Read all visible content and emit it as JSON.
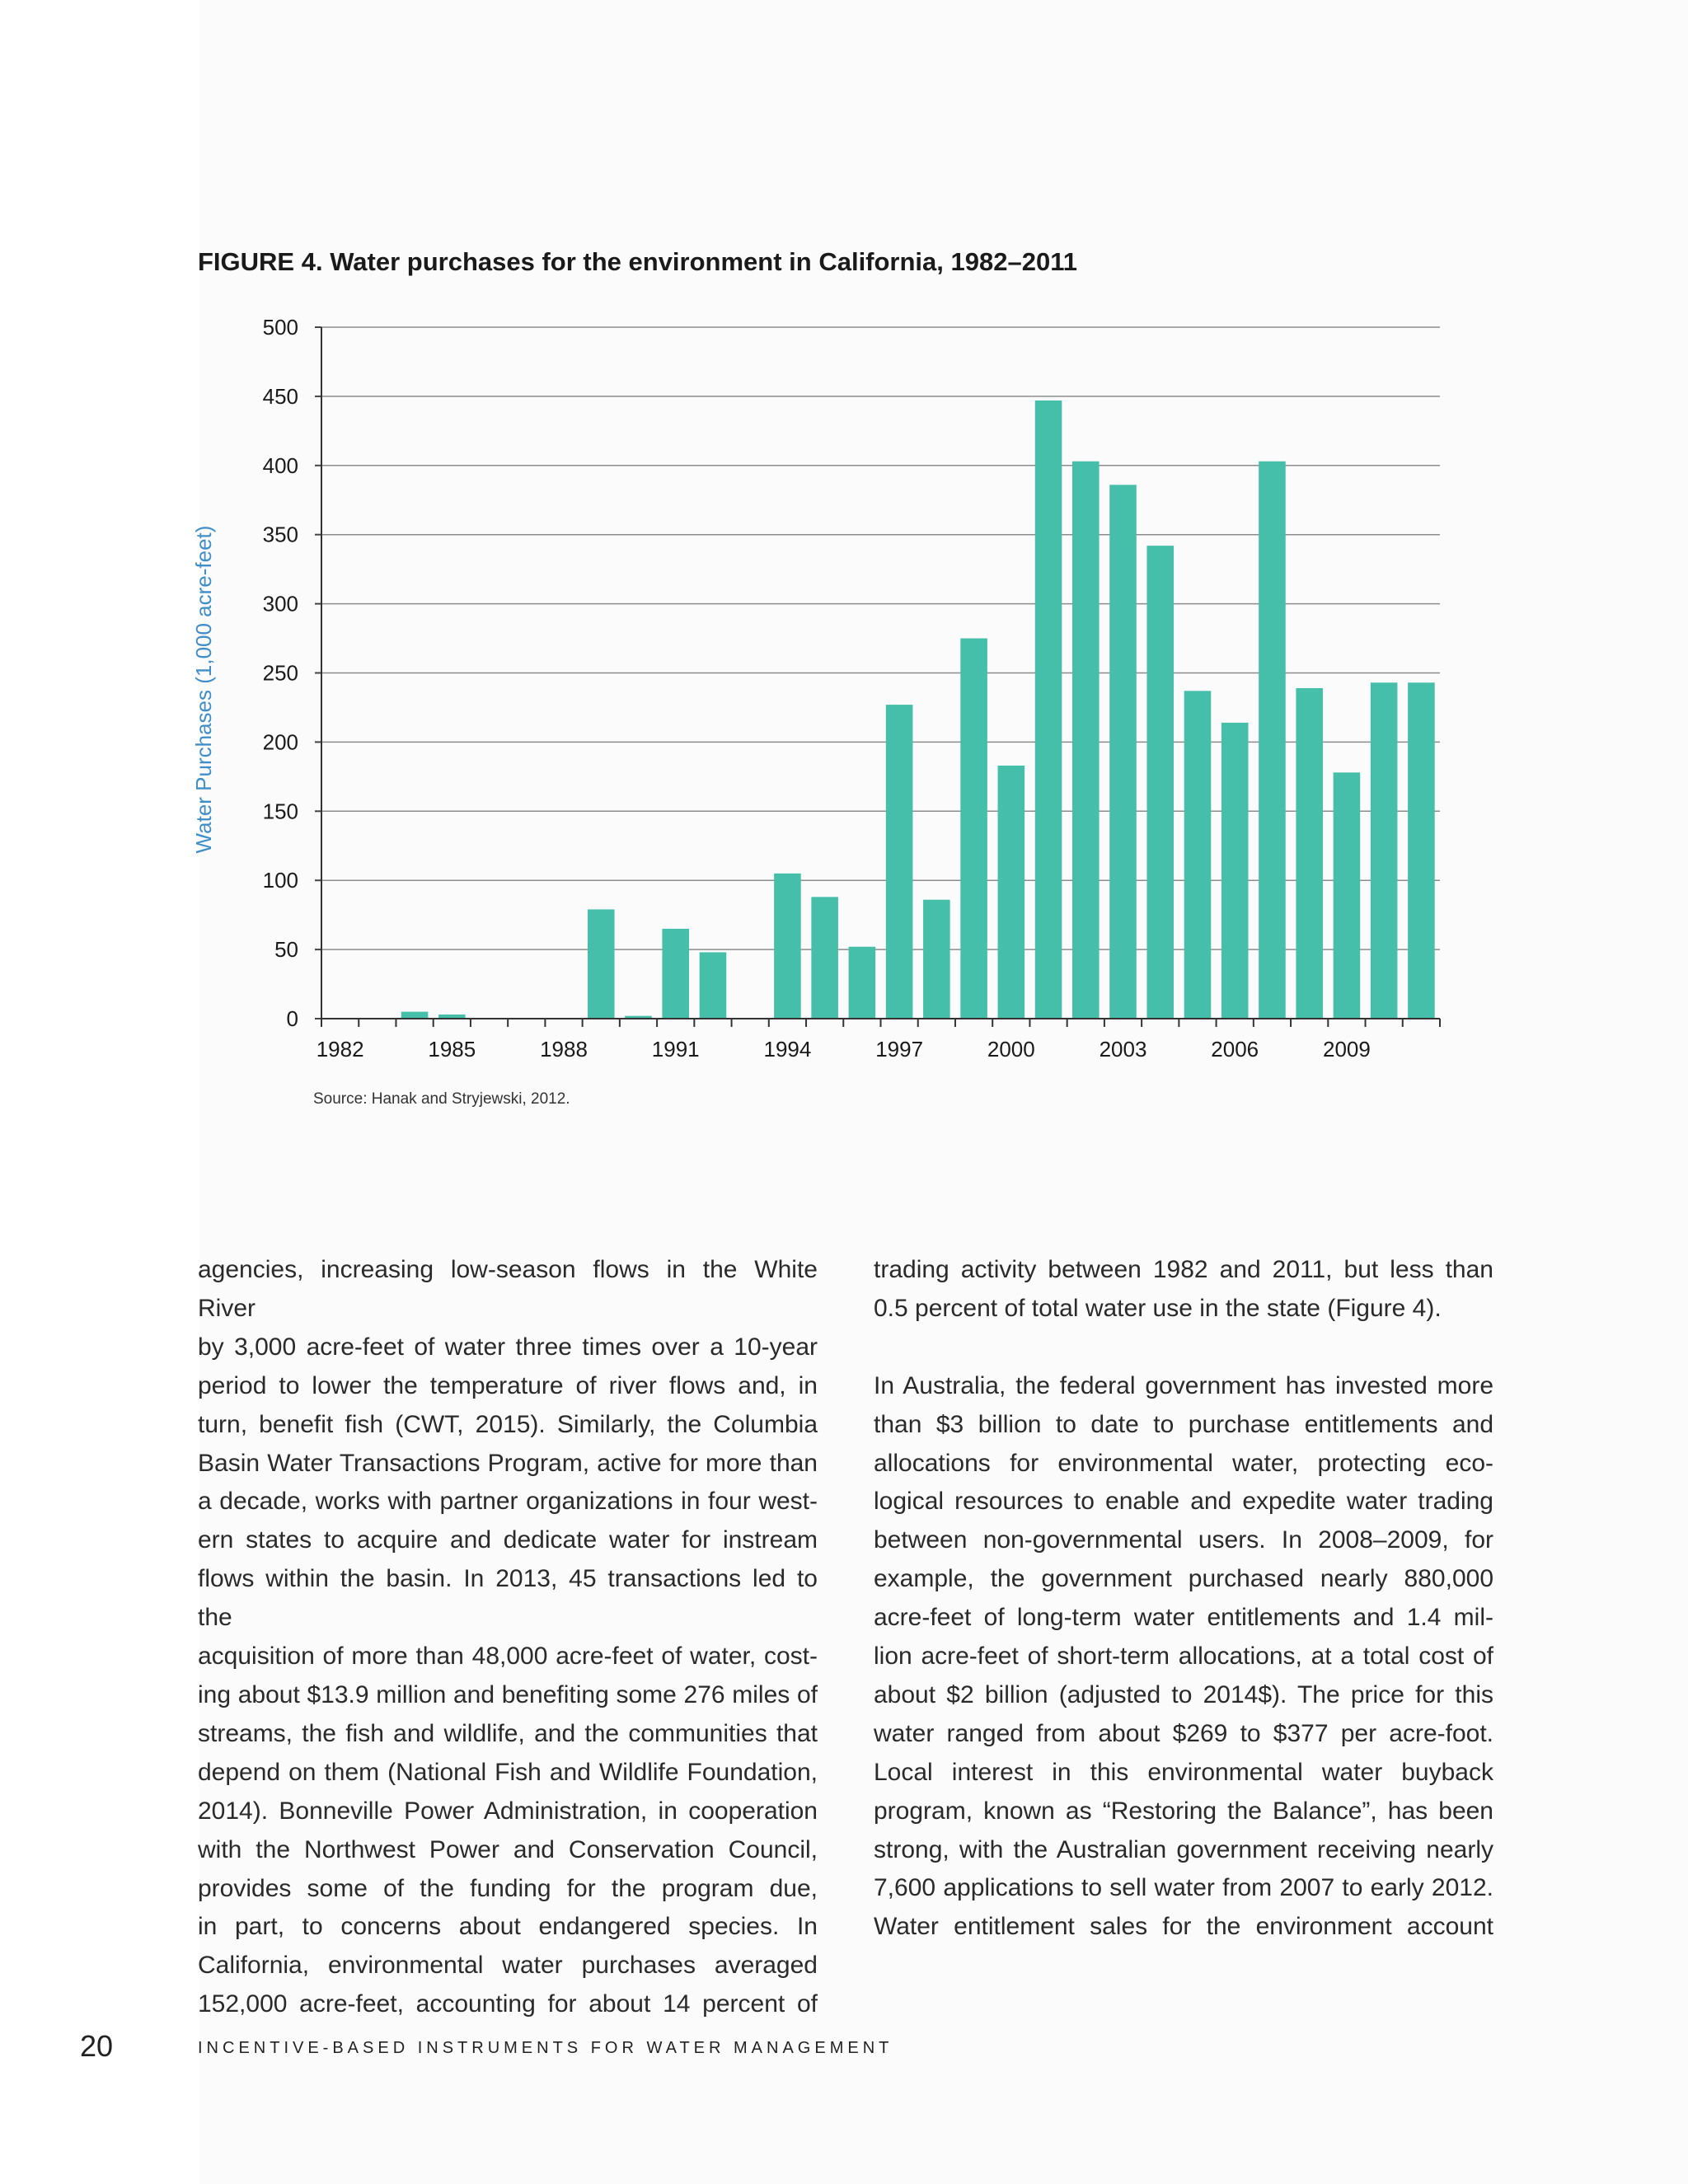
{
  "figure": {
    "title": "FIGURE 4. Water purchases for the environment in California, 1982–2011",
    "source": "Source: Hanak and Stryjewski, 2012."
  },
  "chart_data": {
    "type": "bar",
    "ylabel": "Water Purchases (1,000 acre-feet)",
    "xlabel": "",
    "ylim": [
      0,
      500
    ],
    "yticks": [
      0,
      50,
      100,
      150,
      200,
      250,
      300,
      350,
      400,
      450,
      500
    ],
    "xtick_labels": [
      "1982",
      "1985",
      "1988",
      "1991",
      "1994",
      "1997",
      "2000",
      "2003",
      "2006",
      "2009"
    ],
    "grid": true,
    "bar_color": "#45bfa9",
    "ylabel_color": "#3f8ec8",
    "categories": [
      "1982",
      "1983",
      "1984",
      "1985",
      "1986",
      "1987",
      "1988",
      "1989",
      "1990",
      "1991",
      "1992",
      "1993",
      "1994",
      "1995",
      "1996",
      "1997",
      "1998",
      "1999",
      "2000",
      "2001",
      "2002",
      "2003",
      "2004",
      "2005",
      "2006",
      "2007",
      "2008",
      "2009",
      "2010",
      "2011"
    ],
    "values": [
      0,
      0,
      5,
      3,
      0,
      0,
      0,
      79,
      2,
      65,
      48,
      0,
      105,
      88,
      52,
      227,
      86,
      275,
      183,
      447,
      403,
      386,
      342,
      237,
      214,
      403,
      239,
      178,
      243,
      243
    ]
  },
  "body": {
    "left_lines": [
      "agencies, increasing low-season flows in the White River",
      "by 3,000 acre-feet of water three times over a 10-year",
      "period to lower the temperature of river flows and, in",
      "turn, benefit fish (CWT, 2015). Similarly, the Columbia",
      "Basin Water Transactions Program, active for more than",
      "a decade, works with partner organizations in four west-",
      "ern states to acquire and dedicate water for instream",
      "flows within the basin. In 2013, 45 transactions led to the",
      "acquisition of more than 48,000 acre-feet of water, cost-",
      "ing about $13.9 million and benefiting some 276 miles of",
      "streams, the fish and wildlife, and the communities that",
      "depend on them (National Fish and Wildlife Foundation,",
      "2014). Bonneville Power Administration, in cooperation",
      "with the Northwest Power and Conservation Council,",
      "provides some of the funding for the program due,",
      "in part, to concerns about endangered species. In",
      "California, environmental water purchases averaged",
      "152,000 acre-feet, accounting for about 14 percent of"
    ],
    "right_para1": [
      "trading activity between 1982 and 2011, but less than",
      "0.5 percent of total water use in the state (Figure 4)."
    ],
    "right_para2": [
      "In Australia, the federal government has invested more",
      "than $3 billion to date to purchase entitlements and",
      "allocations for environmental water, protecting eco-",
      "logical resources to enable and expedite water trading",
      "between non-governmental users. In 2008–2009, for",
      "example, the government purchased nearly 880,000",
      "acre-feet of long-term water entitlements and 1.4 mil-",
      "lion acre-feet of short-term allocations, at a total cost of",
      "about $2 billion (adjusted to 2014$). The price for this",
      "water ranged from about $269 to $377 per acre-foot.",
      "Local interest in this environmental water buyback",
      "program, known as “Restoring the Balance”, has been",
      "strong, with the Australian government receiving nearly",
      "7,600 applications to sell water from 2007 to early 2012.",
      "Water entitlement sales for the environment account"
    ]
  },
  "footer": {
    "page_number": "20",
    "running_title": "INCENTIVE-BASED INSTRUMENTS FOR WATER MANAGEMENT"
  }
}
